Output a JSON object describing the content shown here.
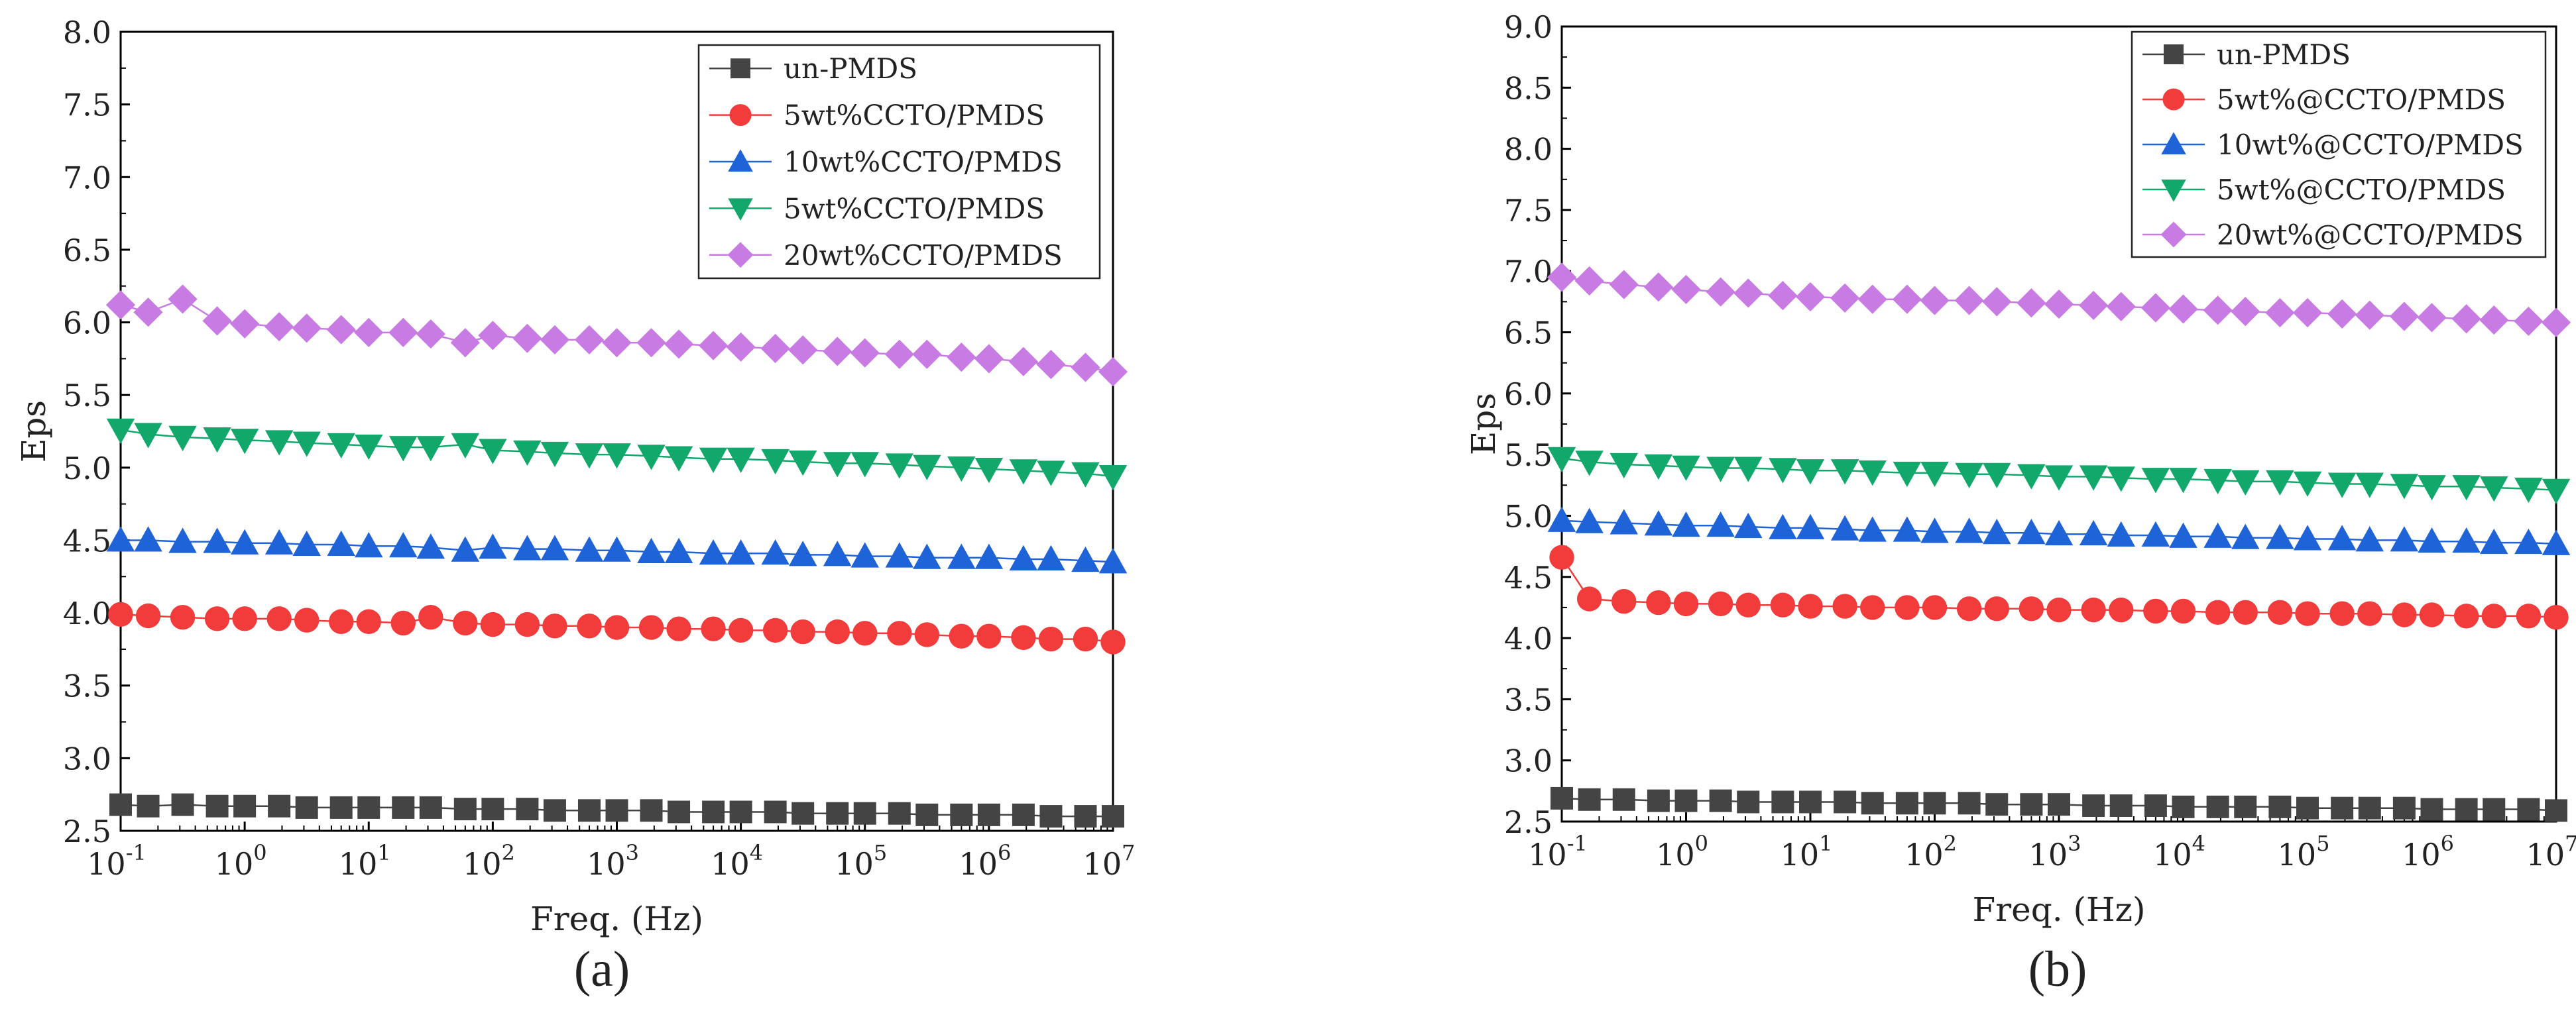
{
  "figure": {
    "panel_labels": [
      "(a)",
      "(b)"
    ]
  },
  "chart_data": [
    {
      "type": "line",
      "panel": "(a)",
      "title": "",
      "xlabel": "Freq.  (Hz)",
      "ylabel": "Eps",
      "xscale": "log",
      "xlim": [
        0.1,
        10000000
      ],
      "ylim": [
        2.5,
        8.0
      ],
      "x_tick_labels": [
        {
          "base": "10",
          "exp": "-1"
        },
        {
          "base": "10",
          "exp": "0"
        },
        {
          "base": "10",
          "exp": "1"
        },
        {
          "base": "10",
          "exp": "2"
        },
        {
          "base": "10",
          "exp": "3"
        },
        {
          "base": "10",
          "exp": "4"
        },
        {
          "base": "10",
          "exp": "5"
        },
        {
          "base": "10",
          "exp": "6"
        },
        {
          "base": "10",
          "exp": "7"
        }
      ],
      "y_ticks": [
        "2.5",
        "3.0",
        "3.5",
        "4.0",
        "4.5",
        "5.0",
        "5.5",
        "6.0",
        "6.5",
        "7.0",
        "7.5",
        "8.0"
      ],
      "legend_position": "top-right",
      "x_log": [
        -1,
        -0.778,
        -0.5,
        -0.222,
        0,
        0.278,
        0.5,
        0.778,
        1,
        1.278,
        1.5,
        1.778,
        2,
        2.278,
        2.5,
        2.778,
        3,
        3.278,
        3.5,
        3.778,
        4,
        4.278,
        4.5,
        4.778,
        5,
        5.278,
        5.5,
        5.778,
        6,
        6.278,
        6.5,
        6.778,
        7
      ],
      "series": [
        {
          "name": "un-PMDS",
          "color": "#444444",
          "marker": "square",
          "values": [
            2.68,
            2.67,
            2.68,
            2.67,
            2.67,
            2.67,
            2.66,
            2.66,
            2.66,
            2.66,
            2.66,
            2.65,
            2.65,
            2.65,
            2.64,
            2.64,
            2.64,
            2.64,
            2.63,
            2.63,
            2.63,
            2.63,
            2.62,
            2.62,
            2.62,
            2.62,
            2.61,
            2.61,
            2.61,
            2.61,
            2.6,
            2.6,
            2.6
          ]
        },
        {
          "name": "5wt%CCTO/PMDS",
          "color": "#f23b3b",
          "marker": "circle",
          "values": [
            3.99,
            3.98,
            3.97,
            3.96,
            3.96,
            3.96,
            3.95,
            3.94,
            3.94,
            3.93,
            3.97,
            3.93,
            3.92,
            3.92,
            3.91,
            3.91,
            3.9,
            3.9,
            3.89,
            3.89,
            3.88,
            3.88,
            3.87,
            3.87,
            3.86,
            3.86,
            3.85,
            3.84,
            3.84,
            3.83,
            3.82,
            3.82,
            3.8
          ]
        },
        {
          "name": "10wt%CCTO/PMDS",
          "color": "#1f63d8",
          "marker": "triangle-up",
          "values": [
            4.5,
            4.5,
            4.49,
            4.49,
            4.48,
            4.48,
            4.47,
            4.47,
            4.46,
            4.46,
            4.45,
            4.43,
            4.45,
            4.44,
            4.44,
            4.43,
            4.43,
            4.42,
            4.42,
            4.41,
            4.41,
            4.41,
            4.4,
            4.4,
            4.39,
            4.39,
            4.38,
            4.38,
            4.38,
            4.37,
            4.37,
            4.36,
            4.35
          ]
        },
        {
          "name": "5wt%CCTO/PMDS",
          "color": "#13a86b",
          "marker": "triangle-down",
          "values": [
            5.26,
            5.23,
            5.21,
            5.2,
            5.19,
            5.18,
            5.17,
            5.16,
            5.15,
            5.14,
            5.14,
            5.16,
            5.12,
            5.11,
            5.1,
            5.09,
            5.09,
            5.08,
            5.07,
            5.06,
            5.06,
            5.05,
            5.04,
            5.03,
            5.03,
            5.02,
            5.01,
            5.0,
            4.99,
            4.98,
            4.97,
            4.96,
            4.94
          ]
        },
        {
          "name": "20wt%CCTO/PMDS",
          "color": "#c77be3",
          "marker": "diamond",
          "values": [
            6.12,
            6.07,
            6.16,
            6.01,
            5.99,
            5.97,
            5.96,
            5.95,
            5.93,
            5.93,
            5.92,
            5.86,
            5.91,
            5.89,
            5.88,
            5.88,
            5.86,
            5.86,
            5.85,
            5.84,
            5.83,
            5.82,
            5.81,
            5.8,
            5.79,
            5.78,
            5.78,
            5.76,
            5.75,
            5.73,
            5.71,
            5.69,
            5.66
          ]
        }
      ]
    },
    {
      "type": "line",
      "panel": "(b)",
      "title": "",
      "xlabel": "Freq.  (Hz)",
      "ylabel": "Eps",
      "xscale": "log",
      "xlim": [
        0.1,
        10000000
      ],
      "ylim": [
        2.5,
        9.0
      ],
      "x_tick_labels": [
        {
          "base": "10",
          "exp": "-1"
        },
        {
          "base": "10",
          "exp": "0"
        },
        {
          "base": "10",
          "exp": "1"
        },
        {
          "base": "10",
          "exp": "2"
        },
        {
          "base": "10",
          "exp": "3"
        },
        {
          "base": "10",
          "exp": "4"
        },
        {
          "base": "10",
          "exp": "5"
        },
        {
          "base": "10",
          "exp": "6"
        },
        {
          "base": "10",
          "exp": "7"
        }
      ],
      "y_ticks": [
        "2.5",
        "3.0",
        "3.5",
        "4.0",
        "4.5",
        "5.0",
        "5.5",
        "6.0",
        "6.5",
        "7.0",
        "7.5",
        "8.0",
        "8.5",
        "9.0"
      ],
      "legend_position": "top-right",
      "x_log": [
        -1,
        -0.778,
        -0.5,
        -0.222,
        0,
        0.278,
        0.5,
        0.778,
        1,
        1.278,
        1.5,
        1.778,
        2,
        2.278,
        2.5,
        2.778,
        3,
        3.278,
        3.5,
        3.778,
        4,
        4.278,
        4.5,
        4.778,
        5,
        5.278,
        5.5,
        5.778,
        6,
        6.278,
        6.5,
        6.778,
        7
      ],
      "series": [
        {
          "name": "un-PMDS",
          "color": "#444444",
          "marker": "square",
          "values": [
            2.69,
            2.68,
            2.68,
            2.67,
            2.67,
            2.67,
            2.66,
            2.66,
            2.66,
            2.66,
            2.65,
            2.65,
            2.65,
            2.65,
            2.64,
            2.64,
            2.64,
            2.63,
            2.63,
            2.63,
            2.62,
            2.62,
            2.62,
            2.62,
            2.61,
            2.61,
            2.61,
            2.61,
            2.6,
            2.6,
            2.6,
            2.6,
            2.59
          ]
        },
        {
          "name": "5wt%@CCTO/PMDS",
          "color": "#f23b3b",
          "marker": "circle",
          "values": [
            4.66,
            4.32,
            4.3,
            4.29,
            4.28,
            4.28,
            4.27,
            4.27,
            4.26,
            4.26,
            4.25,
            4.25,
            4.25,
            4.24,
            4.24,
            4.24,
            4.23,
            4.23,
            4.23,
            4.22,
            4.22,
            4.21,
            4.21,
            4.21,
            4.2,
            4.2,
            4.2,
            4.19,
            4.19,
            4.18,
            4.18,
            4.18,
            4.17
          ]
        },
        {
          "name": "10wt%@CCTO/PMDS",
          "color": "#1f63d8",
          "marker": "triangle-up",
          "values": [
            4.96,
            4.95,
            4.94,
            4.93,
            4.92,
            4.92,
            4.91,
            4.9,
            4.9,
            4.89,
            4.88,
            4.88,
            4.87,
            4.87,
            4.86,
            4.86,
            4.85,
            4.85,
            4.84,
            4.84,
            4.83,
            4.83,
            4.82,
            4.82,
            4.81,
            4.81,
            4.8,
            4.8,
            4.79,
            4.79,
            4.78,
            4.78,
            4.77
          ]
        },
        {
          "name": "5wt%@CCTO/PMDS",
          "color": "#13a86b",
          "marker": "triangle-down",
          "values": [
            5.47,
            5.44,
            5.42,
            5.41,
            5.4,
            5.39,
            5.39,
            5.38,
            5.37,
            5.37,
            5.36,
            5.35,
            5.35,
            5.34,
            5.34,
            5.33,
            5.32,
            5.32,
            5.31,
            5.3,
            5.3,
            5.29,
            5.28,
            5.28,
            5.27,
            5.26,
            5.26,
            5.25,
            5.24,
            5.24,
            5.23,
            5.22,
            5.21
          ]
        },
        {
          "name": "20wt%@CCTO/PMDS",
          "color": "#c77be3",
          "marker": "diamond",
          "values": [
            6.95,
            6.92,
            6.89,
            6.87,
            6.85,
            6.83,
            6.82,
            6.8,
            6.79,
            6.78,
            6.77,
            6.77,
            6.76,
            6.76,
            6.75,
            6.74,
            6.73,
            6.72,
            6.71,
            6.7,
            6.69,
            6.68,
            6.67,
            6.66,
            6.66,
            6.65,
            6.64,
            6.63,
            6.62,
            6.61,
            6.6,
            6.59,
            6.58
          ]
        }
      ]
    }
  ]
}
